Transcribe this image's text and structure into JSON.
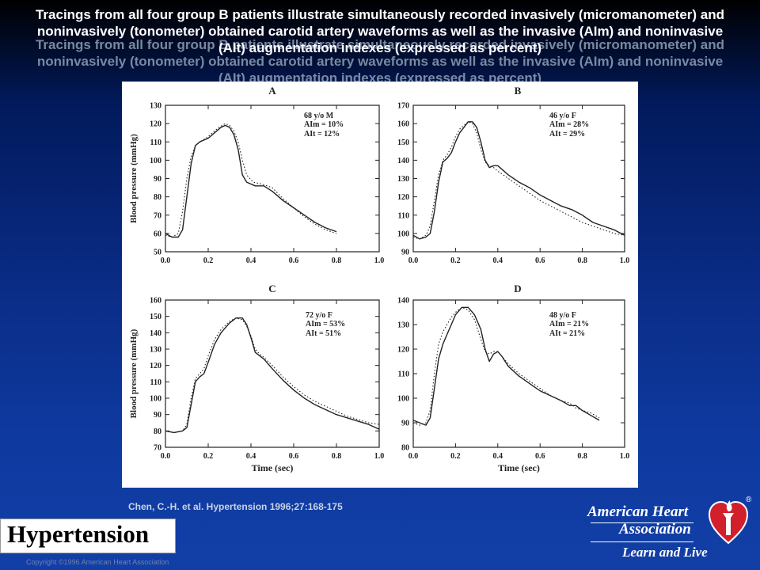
{
  "slide": {
    "title": "Tracings from all four group B patients illustrate simultaneously recorded invasively (micromanometer) and noninvasively (tonometer) obtained carotid artery waveforms as well as the invasive (AIm) and noninvasive (AIt) augmentation indexes (expressed as percent)",
    "citation": "Chen, C.-H. et al. Hypertension 1996;27:168-175",
    "journal": "Hypertension",
    "copyright": "Copyright ©1996 American Heart Association",
    "aha_line1": "American Heart",
    "aha_line2": "Association",
    "aha_tagline": "Learn and Live",
    "aha_registered": "®"
  },
  "colors": {
    "title": "#ffffff",
    "background_top": "#000000",
    "background_bottom": "#123fa6",
    "heart_red": "#d21f2c",
    "plot_ink": "#222222"
  },
  "chart_data": [
    {
      "type": "line",
      "panel": "A",
      "annotation": [
        "68 y/o M",
        "AIm = 10%",
        "AIt = 12%"
      ],
      "xlabel": "",
      "ylabel": "Blood pressure (mmHg)",
      "xlim": [
        0.0,
        1.0
      ],
      "ylim": [
        50,
        130
      ],
      "xticks": [
        0.0,
        0.2,
        0.4,
        0.6,
        0.8,
        1.0
      ],
      "yticks": [
        50,
        60,
        70,
        80,
        90,
        100,
        110,
        120,
        130
      ],
      "series": [
        {
          "style": "solid",
          "x": [
            0.0,
            0.03,
            0.06,
            0.08,
            0.1,
            0.12,
            0.14,
            0.16,
            0.18,
            0.2,
            0.23,
            0.26,
            0.28,
            0.3,
            0.32,
            0.34,
            0.36,
            0.38,
            0.42,
            0.46,
            0.5,
            0.55,
            0.6,
            0.65,
            0.7,
            0.75,
            0.8
          ],
          "y": [
            60,
            58,
            58,
            62,
            80,
            98,
            108,
            110,
            111,
            112,
            115,
            118,
            119,
            118,
            114,
            106,
            92,
            88,
            86,
            86,
            83,
            78,
            74,
            70,
            66,
            63,
            61
          ]
        },
        {
          "style": "dotted",
          "x": [
            0.0,
            0.03,
            0.06,
            0.08,
            0.1,
            0.12,
            0.14,
            0.16,
            0.19,
            0.22,
            0.25,
            0.28,
            0.3,
            0.32,
            0.34,
            0.36,
            0.38,
            0.41,
            0.45,
            0.5,
            0.55,
            0.6,
            0.65,
            0.7,
            0.75,
            0.8
          ],
          "y": [
            59,
            58,
            60,
            72,
            90,
            102,
            108,
            110,
            112,
            115,
            118,
            120,
            119,
            116,
            110,
            100,
            92,
            88,
            87,
            85,
            79,
            74,
            69,
            65,
            62,
            60
          ]
        }
      ]
    },
    {
      "type": "line",
      "panel": "B",
      "annotation": [
        "46 y/o F",
        "AIm = 28%",
        "AIt = 29%"
      ],
      "xlabel": "",
      "ylabel": "",
      "xlim": [
        0.0,
        1.0
      ],
      "ylim": [
        90,
        170
      ],
      "xticks": [
        0.0,
        0.2,
        0.4,
        0.6,
        0.8,
        1.0
      ],
      "yticks": [
        90,
        100,
        110,
        120,
        130,
        140,
        150,
        160,
        170
      ],
      "series": [
        {
          "style": "solid",
          "x": [
            0.0,
            0.03,
            0.06,
            0.08,
            0.1,
            0.12,
            0.14,
            0.16,
            0.18,
            0.2,
            0.22,
            0.24,
            0.26,
            0.28,
            0.3,
            0.32,
            0.34,
            0.36,
            0.38,
            0.4,
            0.45,
            0.5,
            0.55,
            0.6,
            0.65,
            0.7,
            0.75,
            0.8,
            0.85,
            0.9,
            0.95,
            1.0
          ],
          "y": [
            99,
            97,
            98,
            100,
            112,
            128,
            139,
            141,
            144,
            150,
            155,
            158,
            161,
            161,
            158,
            150,
            140,
            136,
            137,
            137,
            132,
            128,
            125,
            121,
            118,
            115,
            113,
            110,
            106,
            104,
            102,
            99
          ]
        },
        {
          "style": "dotted",
          "x": [
            0.0,
            0.03,
            0.06,
            0.08,
            0.1,
            0.12,
            0.14,
            0.16,
            0.18,
            0.2,
            0.22,
            0.24,
            0.26,
            0.28,
            0.3,
            0.32,
            0.34,
            0.36,
            0.38,
            0.4,
            0.45,
            0.5,
            0.55,
            0.6,
            0.65,
            0.7,
            0.75,
            0.8,
            0.85,
            0.9,
            0.95,
            1.0
          ],
          "y": [
            98,
            97,
            99,
            104,
            118,
            132,
            140,
            143,
            147,
            153,
            157,
            159,
            161,
            160,
            155,
            146,
            139,
            137,
            136,
            134,
            130,
            126,
            122,
            118,
            115,
            112,
            109,
            106,
            104,
            102,
            100,
            99
          ]
        }
      ]
    },
    {
      "type": "line",
      "panel": "C",
      "annotation": [
        "72 y/o F",
        "AIm = 53%",
        "AIt = 51%"
      ],
      "xlabel": "Time (sec)",
      "ylabel": "Blood pressure (mmHg)",
      "xlim": [
        0.0,
        1.0
      ],
      "ylim": [
        70,
        160
      ],
      "xticks": [
        0.0,
        0.2,
        0.4,
        0.6,
        0.8,
        1.0
      ],
      "yticks": [
        70,
        80,
        90,
        100,
        110,
        120,
        130,
        140,
        150,
        160
      ],
      "series": [
        {
          "style": "solid",
          "x": [
            0.0,
            0.04,
            0.08,
            0.1,
            0.12,
            0.14,
            0.16,
            0.18,
            0.2,
            0.23,
            0.26,
            0.3,
            0.33,
            0.36,
            0.38,
            0.4,
            0.42,
            0.44,
            0.46,
            0.5,
            0.55,
            0.6,
            0.65,
            0.7,
            0.75,
            0.8,
            0.85,
            0.9,
            0.95,
            1.0
          ],
          "y": [
            80,
            79,
            80,
            82,
            96,
            110,
            113,
            115,
            122,
            133,
            140,
            146,
            149,
            149,
            145,
            137,
            128,
            126,
            124,
            118,
            111,
            105,
            100,
            96,
            93,
            90,
            88,
            86,
            84,
            81
          ]
        },
        {
          "style": "dotted",
          "x": [
            0.0,
            0.04,
            0.08,
            0.1,
            0.12,
            0.14,
            0.16,
            0.18,
            0.2,
            0.23,
            0.26,
            0.3,
            0.33,
            0.36,
            0.38,
            0.4,
            0.42,
            0.44,
            0.46,
            0.5,
            0.55,
            0.6,
            0.65,
            0.7,
            0.75,
            0.8,
            0.85,
            0.9,
            0.95,
            1.0
          ],
          "y": [
            80,
            79,
            80,
            84,
            100,
            112,
            115,
            118,
            126,
            136,
            142,
            147,
            149,
            148,
            144,
            138,
            130,
            127,
            125,
            120,
            113,
            107,
            102,
            98,
            95,
            92,
            89,
            87,
            85,
            84
          ]
        }
      ]
    },
    {
      "type": "line",
      "panel": "D",
      "annotation": [
        "48 y/o F",
        "AIm = 21%",
        "AIt = 21%"
      ],
      "xlabel": "Time (sec)",
      "ylabel": "",
      "xlim": [
        0.0,
        1.0
      ],
      "ylim": [
        80,
        140
      ],
      "xticks": [
        0.0,
        0.2,
        0.4,
        0.6,
        0.8,
        1.0
      ],
      "yticks": [
        80,
        90,
        100,
        110,
        120,
        130,
        140
      ],
      "series": [
        {
          "style": "solid",
          "x": [
            0.0,
            0.03,
            0.06,
            0.08,
            0.1,
            0.12,
            0.14,
            0.16,
            0.18,
            0.2,
            0.23,
            0.26,
            0.29,
            0.32,
            0.34,
            0.36,
            0.38,
            0.4,
            0.42,
            0.45,
            0.5,
            0.55,
            0.6,
            0.65,
            0.7,
            0.74,
            0.77,
            0.8,
            0.84,
            0.88
          ],
          "y": [
            91,
            90,
            89,
            92,
            104,
            116,
            122,
            126,
            130,
            134,
            137,
            137,
            134,
            128,
            120,
            115,
            118,
            119,
            117,
            113,
            109,
            106,
            103,
            101,
            99,
            97,
            97,
            95,
            93,
            91
          ]
        },
        {
          "style": "dotted",
          "x": [
            0.0,
            0.03,
            0.06,
            0.08,
            0.1,
            0.12,
            0.14,
            0.16,
            0.18,
            0.2,
            0.23,
            0.26,
            0.29,
            0.32,
            0.34,
            0.36,
            0.38,
            0.4,
            0.42,
            0.45,
            0.5,
            0.55,
            0.6,
            0.65,
            0.7,
            0.74,
            0.77,
            0.8,
            0.84,
            0.88
          ],
          "y": [
            90,
            89,
            90,
            95,
            110,
            122,
            127,
            130,
            133,
            135,
            137,
            136,
            132,
            124,
            119,
            118,
            119,
            119,
            117,
            114,
            110,
            107,
            104,
            101,
            99,
            98,
            96,
            95,
            94,
            92
          ]
        }
      ]
    }
  ]
}
